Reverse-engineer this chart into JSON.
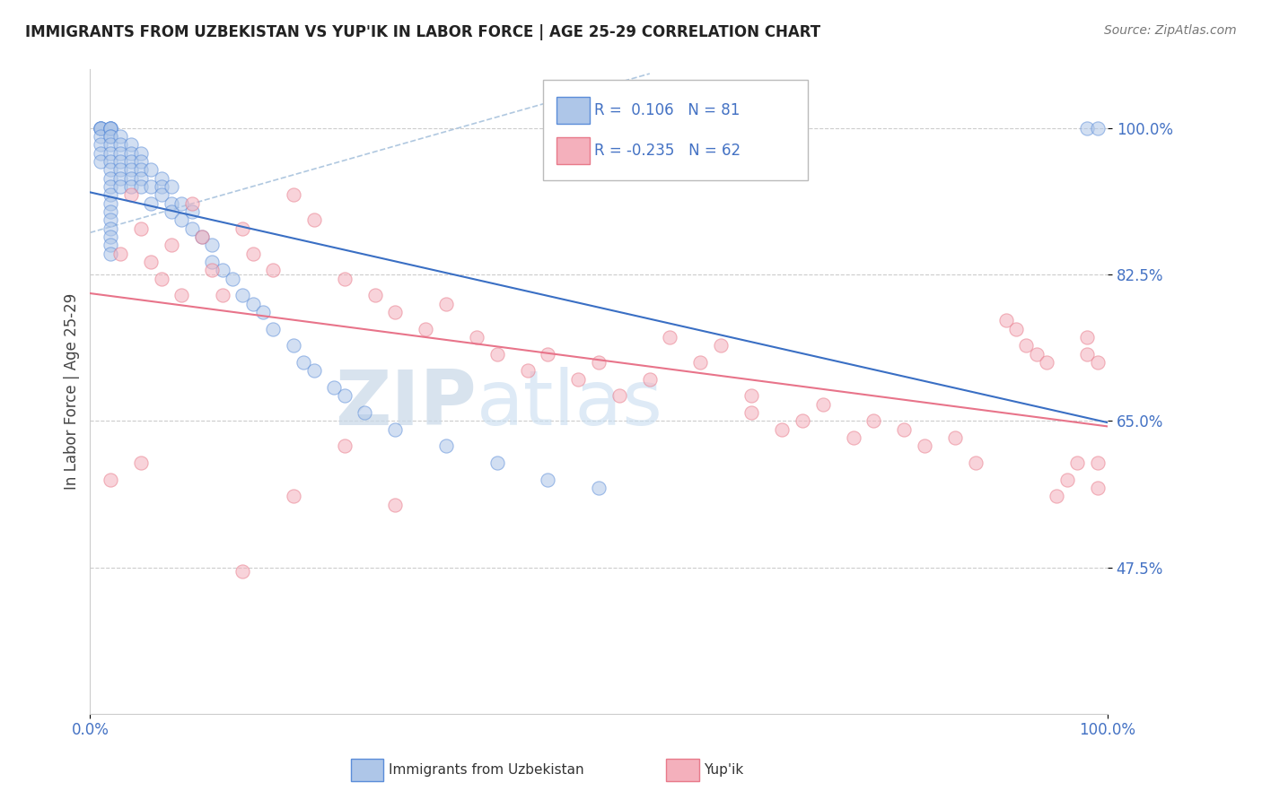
{
  "title": "IMMIGRANTS FROM UZBEKISTAN VS YUP'IK IN LABOR FORCE | AGE 25-29 CORRELATION CHART",
  "source": "Source: ZipAtlas.com",
  "ylabel": "In Labor Force | Age 25-29",
  "xlim": [
    0.0,
    1.0
  ],
  "ylim": [
    0.3,
    1.07
  ],
  "yticks": [
    0.475,
    0.65,
    0.825,
    1.0
  ],
  "ytick_labels": [
    "47.5%",
    "65.0%",
    "82.5%",
    "100.0%"
  ],
  "xticks": [
    0.0,
    1.0
  ],
  "xtick_labels": [
    "0.0%",
    "100.0%"
  ],
  "legend_entries": [
    {
      "label": "Immigrants from Uzbekistan",
      "color": "#aec6e8",
      "edge": "#5b8dd9",
      "R": 0.106,
      "N": 81
    },
    {
      "label": "Yup'ik",
      "color": "#f4b0bc",
      "edge": "#e87a8a",
      "R": -0.235,
      "N": 62
    }
  ],
  "blue_line_color": "#3a6fc4",
  "pink_line_color": "#e8748a",
  "dashed_line_color": "#b0c8e0",
  "scatter_alpha": 0.55,
  "scatter_size": 120,
  "background_color": "#ffffff",
  "grid_color": "#cccccc",
  "tick_color": "#4472c4",
  "watermark_zip": "ZIP",
  "watermark_atlas": "atlas",
  "watermark_zip_color": "#c8d8e8",
  "watermark_atlas_color": "#c8ddf0",
  "blue_scatter_x": [
    0.01,
    0.01,
    0.01,
    0.01,
    0.01,
    0.01,
    0.01,
    0.01,
    0.02,
    0.02,
    0.02,
    0.02,
    0.02,
    0.02,
    0.02,
    0.02,
    0.02,
    0.02,
    0.02,
    0.02,
    0.02,
    0.02,
    0.02,
    0.02,
    0.02,
    0.02,
    0.02,
    0.02,
    0.03,
    0.03,
    0.03,
    0.03,
    0.03,
    0.03,
    0.03,
    0.04,
    0.04,
    0.04,
    0.04,
    0.04,
    0.04,
    0.05,
    0.05,
    0.05,
    0.05,
    0.05,
    0.06,
    0.06,
    0.06,
    0.07,
    0.07,
    0.07,
    0.08,
    0.08,
    0.08,
    0.09,
    0.09,
    0.1,
    0.1,
    0.11,
    0.12,
    0.12,
    0.13,
    0.14,
    0.15,
    0.16,
    0.17,
    0.18,
    0.2,
    0.21,
    0.22,
    0.24,
    0.25,
    0.27,
    0.3,
    0.35,
    0.4,
    0.45,
    0.5,
    0.98,
    0.99
  ],
  "blue_scatter_y": [
    1.0,
    1.0,
    1.0,
    1.0,
    0.99,
    0.98,
    0.97,
    0.96,
    1.0,
    1.0,
    1.0,
    1.0,
    0.99,
    0.99,
    0.98,
    0.97,
    0.96,
    0.95,
    0.94,
    0.93,
    0.92,
    0.91,
    0.9,
    0.89,
    0.88,
    0.87,
    0.86,
    0.85,
    0.99,
    0.98,
    0.97,
    0.96,
    0.95,
    0.94,
    0.93,
    0.98,
    0.97,
    0.96,
    0.95,
    0.94,
    0.93,
    0.97,
    0.96,
    0.95,
    0.94,
    0.93,
    0.95,
    0.93,
    0.91,
    0.94,
    0.93,
    0.92,
    0.93,
    0.91,
    0.9,
    0.91,
    0.89,
    0.9,
    0.88,
    0.87,
    0.86,
    0.84,
    0.83,
    0.82,
    0.8,
    0.79,
    0.78,
    0.76,
    0.74,
    0.72,
    0.71,
    0.69,
    0.68,
    0.66,
    0.64,
    0.62,
    0.6,
    0.58,
    0.57,
    1.0,
    1.0
  ],
  "pink_scatter_x": [
    0.02,
    0.03,
    0.04,
    0.05,
    0.05,
    0.06,
    0.07,
    0.08,
    0.09,
    0.1,
    0.11,
    0.12,
    0.13,
    0.15,
    0.16,
    0.18,
    0.2,
    0.22,
    0.25,
    0.28,
    0.3,
    0.33,
    0.35,
    0.38,
    0.4,
    0.43,
    0.45,
    0.48,
    0.5,
    0.52,
    0.55,
    0.57,
    0.6,
    0.62,
    0.65,
    0.65,
    0.68,
    0.7,
    0.72,
    0.75,
    0.77,
    0.8,
    0.82,
    0.85,
    0.87,
    0.9,
    0.91,
    0.92,
    0.93,
    0.94,
    0.95,
    0.96,
    0.97,
    0.98,
    0.98,
    0.99,
    0.99,
    0.99,
    0.15,
    0.2,
    0.25,
    0.3
  ],
  "pink_scatter_y": [
    0.58,
    0.85,
    0.92,
    0.88,
    0.6,
    0.84,
    0.82,
    0.86,
    0.8,
    0.91,
    0.87,
    0.83,
    0.8,
    0.88,
    0.85,
    0.83,
    0.92,
    0.89,
    0.82,
    0.8,
    0.78,
    0.76,
    0.79,
    0.75,
    0.73,
    0.71,
    0.73,
    0.7,
    0.72,
    0.68,
    0.7,
    0.75,
    0.72,
    0.74,
    0.68,
    0.66,
    0.64,
    0.65,
    0.67,
    0.63,
    0.65,
    0.64,
    0.62,
    0.63,
    0.6,
    0.77,
    0.76,
    0.74,
    0.73,
    0.72,
    0.56,
    0.58,
    0.6,
    0.75,
    0.73,
    0.72,
    0.6,
    0.57,
    0.47,
    0.56,
    0.62,
    0.55
  ]
}
